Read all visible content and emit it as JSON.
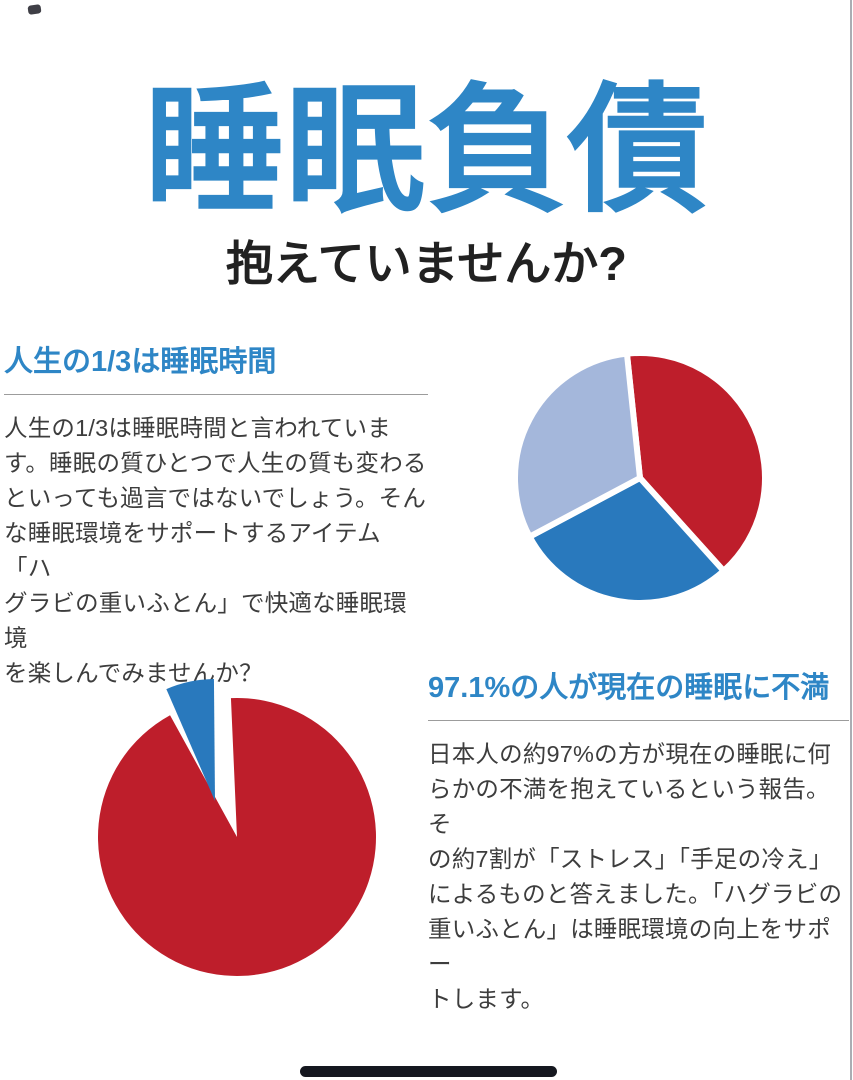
{
  "header": {
    "title": "睡眠負債",
    "subtitle": "抱えていませんか?"
  },
  "sections": {
    "life": {
      "heading": "人生の1/3は睡眠時間",
      "body_lines": [
        "人生の1/3は睡眠時間と言われていま",
        "す。睡眠の質ひとつで人生の質も変わる",
        "といっても過言ではないでしょう。そん",
        "な睡眠環境をサポートするアイテム「ハ",
        "グラビの重いふとん」で快適な睡眠環境",
        "を楽しんでみませんか？"
      ]
    },
    "dissatisfaction": {
      "heading": "97.1%の人が現在の睡眠に不満",
      "body_lines": [
        "日本人の約97%の方が現在の睡眠に何",
        "らかの不満を抱えているという報告。そ",
        "の約7割が「ストレス」「手足の冷え」",
        "によるものと答えました。「ハグラビの",
        "重いふとん」は睡眠環境の向上をサポー",
        "トします。"
      ]
    }
  },
  "colors": {
    "accent_blue": "#2e86c6",
    "pie_red": "#be1e2b",
    "pie_blue": "#2979bd",
    "pie_light_blue": "#a4b7db",
    "subtitle_text": "#212121",
    "body_text": "#3d3d3d",
    "divider_gray": "#9c9c9c",
    "edge_line_gray": "#abadb3",
    "home_indicator_dark": "#15171f"
  },
  "chart_data": [
    {
      "type": "pie",
      "name": "life-sleep-pie",
      "related_heading": "人生の1/3は睡眠時間",
      "legend": "none",
      "center": [
        140,
        140
      ],
      "radius": 125,
      "gap_stroke_px": 6,
      "gap_color": "#ffffff",
      "slices": [
        {
          "percent": 40.0,
          "color": "#be1e2b",
          "start_deg": 354,
          "end_deg": 498
        },
        {
          "percent": 28.9,
          "color": "#2979bd",
          "start_deg": 138,
          "end_deg": 242
        },
        {
          "percent": 31.1,
          "color": "#a4b7db",
          "start_deg": 242,
          "end_deg": 354
        }
      ]
    },
    {
      "type": "pie",
      "name": "dissatisfaction-pie",
      "related_heading": "97.1%の人が現在の睡眠に不満",
      "legend": "none",
      "center": [
        160,
        185
      ],
      "radius": 139,
      "slices": [
        {
          "percent": 97.1,
          "color": "#be1e2b",
          "start_deg": 357.5,
          "end_deg": 691.2,
          "offset": [
            0,
            0
          ],
          "radius": 139
        },
        {
          "percent": 2.9,
          "color": "#2979bd",
          "start_deg": 336.5,
          "end_deg": 359.5,
          "offset": [
            -22,
            -36
          ],
          "radius": 122
        }
      ]
    }
  ]
}
